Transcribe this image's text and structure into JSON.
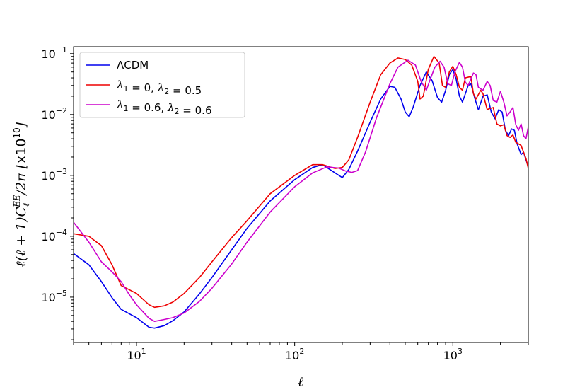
{
  "chart_data": {
    "type": "line",
    "xlabel": "ℓ",
    "ylabel": "ℓ(ℓ + 1)C_ℓ^EE/2π [x10^10]",
    "xscale": "log",
    "yscale": "log",
    "xlim": [
      4,
      3000
    ],
    "ylim": [
      1.8e-06,
      0.13
    ],
    "grid": false,
    "legend_position": "top-left",
    "x_ticks": [
      {
        "base": "10",
        "exp": "1"
      },
      {
        "base": "10",
        "exp": "2"
      },
      {
        "base": "10",
        "exp": "3"
      }
    ],
    "y_ticks": [
      {
        "base": "10",
        "exp": "−5"
      },
      {
        "base": "10",
        "exp": "−4"
      },
      {
        "base": "10",
        "exp": "−3"
      },
      {
        "base": "10",
        "exp": "−2"
      },
      {
        "base": "10",
        "exp": "−1"
      }
    ],
    "series": [
      {
        "name": "ΛCDM",
        "color": "#0000ee",
        "points": [
          [
            4,
            5.2e-05
          ],
          [
            5,
            3.4e-05
          ],
          [
            6,
            1.8e-05
          ],
          [
            7,
            9.8e-06
          ],
          [
            8,
            6.3e-06
          ],
          [
            10,
            4.6e-06
          ],
          [
            12,
            3.2e-06
          ],
          [
            13,
            3.1e-06
          ],
          [
            15,
            3.4e-06
          ],
          [
            17,
            4.1e-06
          ],
          [
            20,
            5.7e-06
          ],
          [
            25,
            1.13e-05
          ],
          [
            30,
            2.1e-05
          ],
          [
            40,
            6e-05
          ],
          [
            50,
            0.000135
          ],
          [
            70,
            0.00038
          ],
          [
            100,
            0.00085
          ],
          [
            130,
            0.00135
          ],
          [
            150,
            0.0015
          ],
          [
            180,
            0.0011
          ],
          [
            200,
            0.00092
          ],
          [
            220,
            0.00125
          ],
          [
            250,
            0.0025
          ],
          [
            300,
            0.0075
          ],
          [
            350,
            0.018
          ],
          [
            400,
            0.029
          ],
          [
            430,
            0.028
          ],
          [
            470,
            0.018
          ],
          [
            500,
            0.011
          ],
          [
            530,
            0.0092
          ],
          [
            560,
            0.013
          ],
          [
            620,
            0.03
          ],
          [
            680,
            0.05
          ],
          [
            740,
            0.036
          ],
          [
            800,
            0.019
          ],
          [
            850,
            0.016
          ],
          [
            900,
            0.025
          ],
          [
            950,
            0.045
          ],
          [
            1000,
            0.055
          ],
          [
            1050,
            0.038
          ],
          [
            1100,
            0.02
          ],
          [
            1150,
            0.016
          ],
          [
            1250,
            0.03
          ],
          [
            1300,
            0.032
          ],
          [
            1380,
            0.018
          ],
          [
            1450,
            0.012
          ],
          [
            1550,
            0.02
          ],
          [
            1650,
            0.021
          ],
          [
            1750,
            0.011
          ],
          [
            1850,
            0.0085
          ],
          [
            1950,
            0.012
          ],
          [
            2050,
            0.011
          ],
          [
            2150,
            0.0055
          ],
          [
            2250,
            0.0045
          ],
          [
            2350,
            0.0058
          ],
          [
            2450,
            0.0055
          ],
          [
            2550,
            0.0033
          ],
          [
            2700,
            0.0022
          ],
          [
            2800,
            0.0024
          ],
          [
            2900,
            0.0018
          ],
          [
            3000,
            0.0014
          ]
        ]
      },
      {
        "name": "λ_1 = 0, λ_2 = 0.5",
        "color": "#ee0000",
        "points": [
          [
            4,
            0.00011
          ],
          [
            5,
            0.0001
          ],
          [
            6,
            7e-05
          ],
          [
            7,
            3.4e-05
          ],
          [
            8,
            1.55e-05
          ],
          [
            10,
            1.15e-05
          ],
          [
            12,
            7.5e-06
          ],
          [
            13,
            6.8e-06
          ],
          [
            15,
            7.2e-06
          ],
          [
            17,
            8.3e-06
          ],
          [
            20,
            1.15e-05
          ],
          [
            25,
            2.1e-05
          ],
          [
            30,
            3.8e-05
          ],
          [
            40,
            9.5e-05
          ],
          [
            50,
            0.00018
          ],
          [
            70,
            0.0005
          ],
          [
            100,
            0.001
          ],
          [
            130,
            0.0015
          ],
          [
            150,
            0.0015
          ],
          [
            180,
            0.0013
          ],
          [
            200,
            0.00135
          ],
          [
            220,
            0.0018
          ],
          [
            250,
            0.0042
          ],
          [
            300,
            0.016
          ],
          [
            350,
            0.045
          ],
          [
            400,
            0.07
          ],
          [
            450,
            0.085
          ],
          [
            500,
            0.08
          ],
          [
            550,
            0.065
          ],
          [
            600,
            0.035
          ],
          [
            620,
            0.018
          ],
          [
            650,
            0.02
          ],
          [
            700,
            0.055
          ],
          [
            760,
            0.09
          ],
          [
            820,
            0.07
          ],
          [
            860,
            0.03
          ],
          [
            900,
            0.028
          ],
          [
            950,
            0.05
          ],
          [
            1000,
            0.062
          ],
          [
            1050,
            0.045
          ],
          [
            1100,
            0.028
          ],
          [
            1150,
            0.025
          ],
          [
            1200,
            0.04
          ],
          [
            1300,
            0.042
          ],
          [
            1350,
            0.022
          ],
          [
            1400,
            0.018
          ],
          [
            1500,
            0.025
          ],
          [
            1550,
            0.022
          ],
          [
            1650,
            0.012
          ],
          [
            1700,
            0.0125
          ],
          [
            1800,
            0.013
          ],
          [
            1900,
            0.007
          ],
          [
            2000,
            0.0065
          ],
          [
            2100,
            0.0068
          ],
          [
            2200,
            0.0045
          ],
          [
            2300,
            0.0042
          ],
          [
            2400,
            0.0046
          ],
          [
            2500,
            0.0035
          ],
          [
            2600,
            0.0033
          ],
          [
            2700,
            0.0031
          ],
          [
            2800,
            0.0024
          ],
          [
            2900,
            0.0019
          ],
          [
            3000,
            0.0013
          ]
        ]
      },
      {
        "name": "λ_1 = 0.6, λ_2 = 0.6",
        "color": "#cc00cc",
        "points": [
          [
            4,
            0.00017
          ],
          [
            5,
            8e-05
          ],
          [
            6,
            3.8e-05
          ],
          [
            7,
            2.6e-05
          ],
          [
            8,
            1.8e-05
          ],
          [
            9,
            1.1e-05
          ],
          [
            10,
            7.5e-06
          ],
          [
            12,
            4.5e-06
          ],
          [
            13,
            4e-06
          ],
          [
            15,
            4.3e-06
          ],
          [
            17,
            4.6e-06
          ],
          [
            20,
            5.5e-06
          ],
          [
            25,
            8.5e-06
          ],
          [
            30,
            1.4e-05
          ],
          [
            40,
            3.5e-05
          ],
          [
            50,
            8e-05
          ],
          [
            70,
            0.00025
          ],
          [
            100,
            0.00065
          ],
          [
            130,
            0.0011
          ],
          [
            160,
            0.00138
          ],
          [
            190,
            0.00132
          ],
          [
            210,
            0.00118
          ],
          [
            230,
            0.00112
          ],
          [
            250,
            0.0012
          ],
          [
            280,
            0.0024
          ],
          [
            330,
            0.009
          ],
          [
            400,
            0.032
          ],
          [
            450,
            0.06
          ],
          [
            520,
            0.078
          ],
          [
            580,
            0.065
          ],
          [
            630,
            0.035
          ],
          [
            680,
            0.025
          ],
          [
            720,
            0.038
          ],
          [
            770,
            0.06
          ],
          [
            830,
            0.075
          ],
          [
            880,
            0.06
          ],
          [
            930,
            0.032
          ],
          [
            980,
            0.03
          ],
          [
            1030,
            0.05
          ],
          [
            1100,
            0.072
          ],
          [
            1150,
            0.06
          ],
          [
            1200,
            0.034
          ],
          [
            1250,
            0.03
          ],
          [
            1350,
            0.048
          ],
          [
            1400,
            0.045
          ],
          [
            1450,
            0.028
          ],
          [
            1550,
            0.025
          ],
          [
            1650,
            0.035
          ],
          [
            1720,
            0.03
          ],
          [
            1800,
            0.017
          ],
          [
            1900,
            0.016
          ],
          [
            2000,
            0.024
          ],
          [
            2100,
            0.016
          ],
          [
            2200,
            0.0095
          ],
          [
            2300,
            0.011
          ],
          [
            2400,
            0.013
          ],
          [
            2500,
            0.0068
          ],
          [
            2600,
            0.0055
          ],
          [
            2700,
            0.007
          ],
          [
            2800,
            0.0045
          ],
          [
            2900,
            0.004
          ],
          [
            3000,
            0.0063
          ]
        ]
      }
    ]
  }
}
